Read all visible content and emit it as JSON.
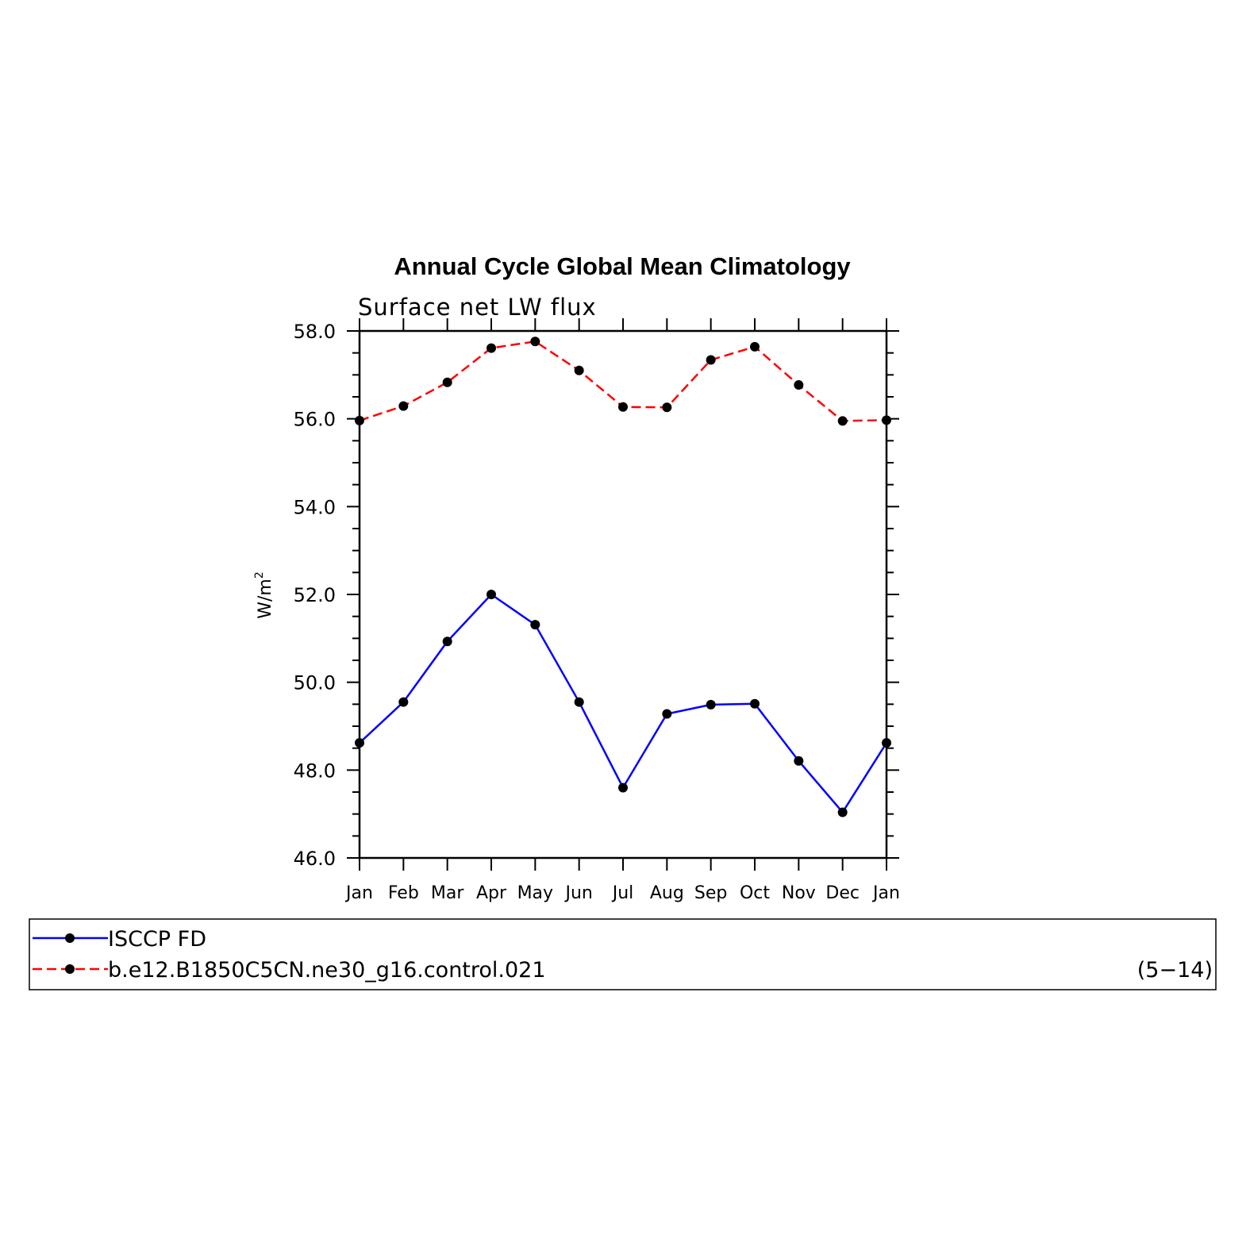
{
  "chart_data": {
    "type": "line",
    "title": "Annual Cycle Global Mean Climatology",
    "subtitle": "Surface net LW flux",
    "ylabel": "W/m",
    "ylabel_superscript": "2",
    "xlabel": "",
    "ylim": [
      46.0,
      58.0
    ],
    "yticks": [
      "46.0",
      "48.0",
      "50.0",
      "52.0",
      "54.0",
      "56.0",
      "58.0"
    ],
    "categories": [
      "Jan",
      "Feb",
      "Mar",
      "Apr",
      "May",
      "Jun",
      "Jul",
      "Aug",
      "Sep",
      "Oct",
      "Nov",
      "Dec",
      "Jan"
    ],
    "grid": false,
    "series": [
      {
        "name": "ISCCP FD",
        "color": "#0000ff",
        "line_style": "solid",
        "marker": "dot",
        "values": [
          48.62,
          49.55,
          50.93,
          52.0,
          51.31,
          49.55,
          47.6,
          49.28,
          49.49,
          49.51,
          48.21,
          47.04,
          48.62
        ]
      },
      {
        "name": "b.e12.B1850C5CN.ne30_g16.control.021",
        "color": "#ff0000",
        "line_style": "dashed",
        "marker": "dot",
        "values": [
          55.96,
          56.29,
          56.83,
          57.61,
          57.76,
          57.1,
          56.27,
          56.26,
          57.34,
          57.64,
          56.77,
          55.95,
          55.97
        ]
      }
    ],
    "legend_position": "bottom",
    "legend_note": "(5−14)"
  }
}
